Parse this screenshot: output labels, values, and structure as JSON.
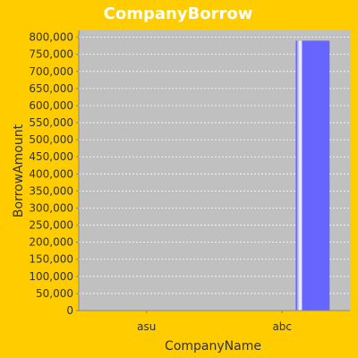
{
  "chart_data": {
    "type": "bar",
    "title": "CompanyBorrow",
    "xlabel": "CompanyName",
    "ylabel": "BorrowAmount",
    "categories": [
      "asu",
      "abc"
    ],
    "series": [
      {
        "values": [
          0,
          790000
        ]
      }
    ],
    "ylim": [
      0,
      820000
    ],
    "yticks": [
      0,
      50000,
      100000,
      150000,
      200000,
      250000,
      300000,
      350000,
      400000,
      450000,
      500000,
      550000,
      600000,
      650000,
      700000,
      750000,
      800000
    ],
    "ytick_labels": [
      "0",
      "50,000",
      "100,000",
      "150,000",
      "200,000",
      "250,000",
      "300,000",
      "350,000",
      "400,000",
      "450,000",
      "500,000",
      "550,000",
      "600,000",
      "650,000",
      "700,000",
      "750,000",
      "800,000"
    ],
    "grid": true,
    "legend": "none"
  },
  "colors": {
    "background": "#ffcc00",
    "plot_background": "#c0c0c0",
    "bar": "#6666ff",
    "title": "#ffffff",
    "text": "#333333",
    "grid": "#ffffff"
  }
}
